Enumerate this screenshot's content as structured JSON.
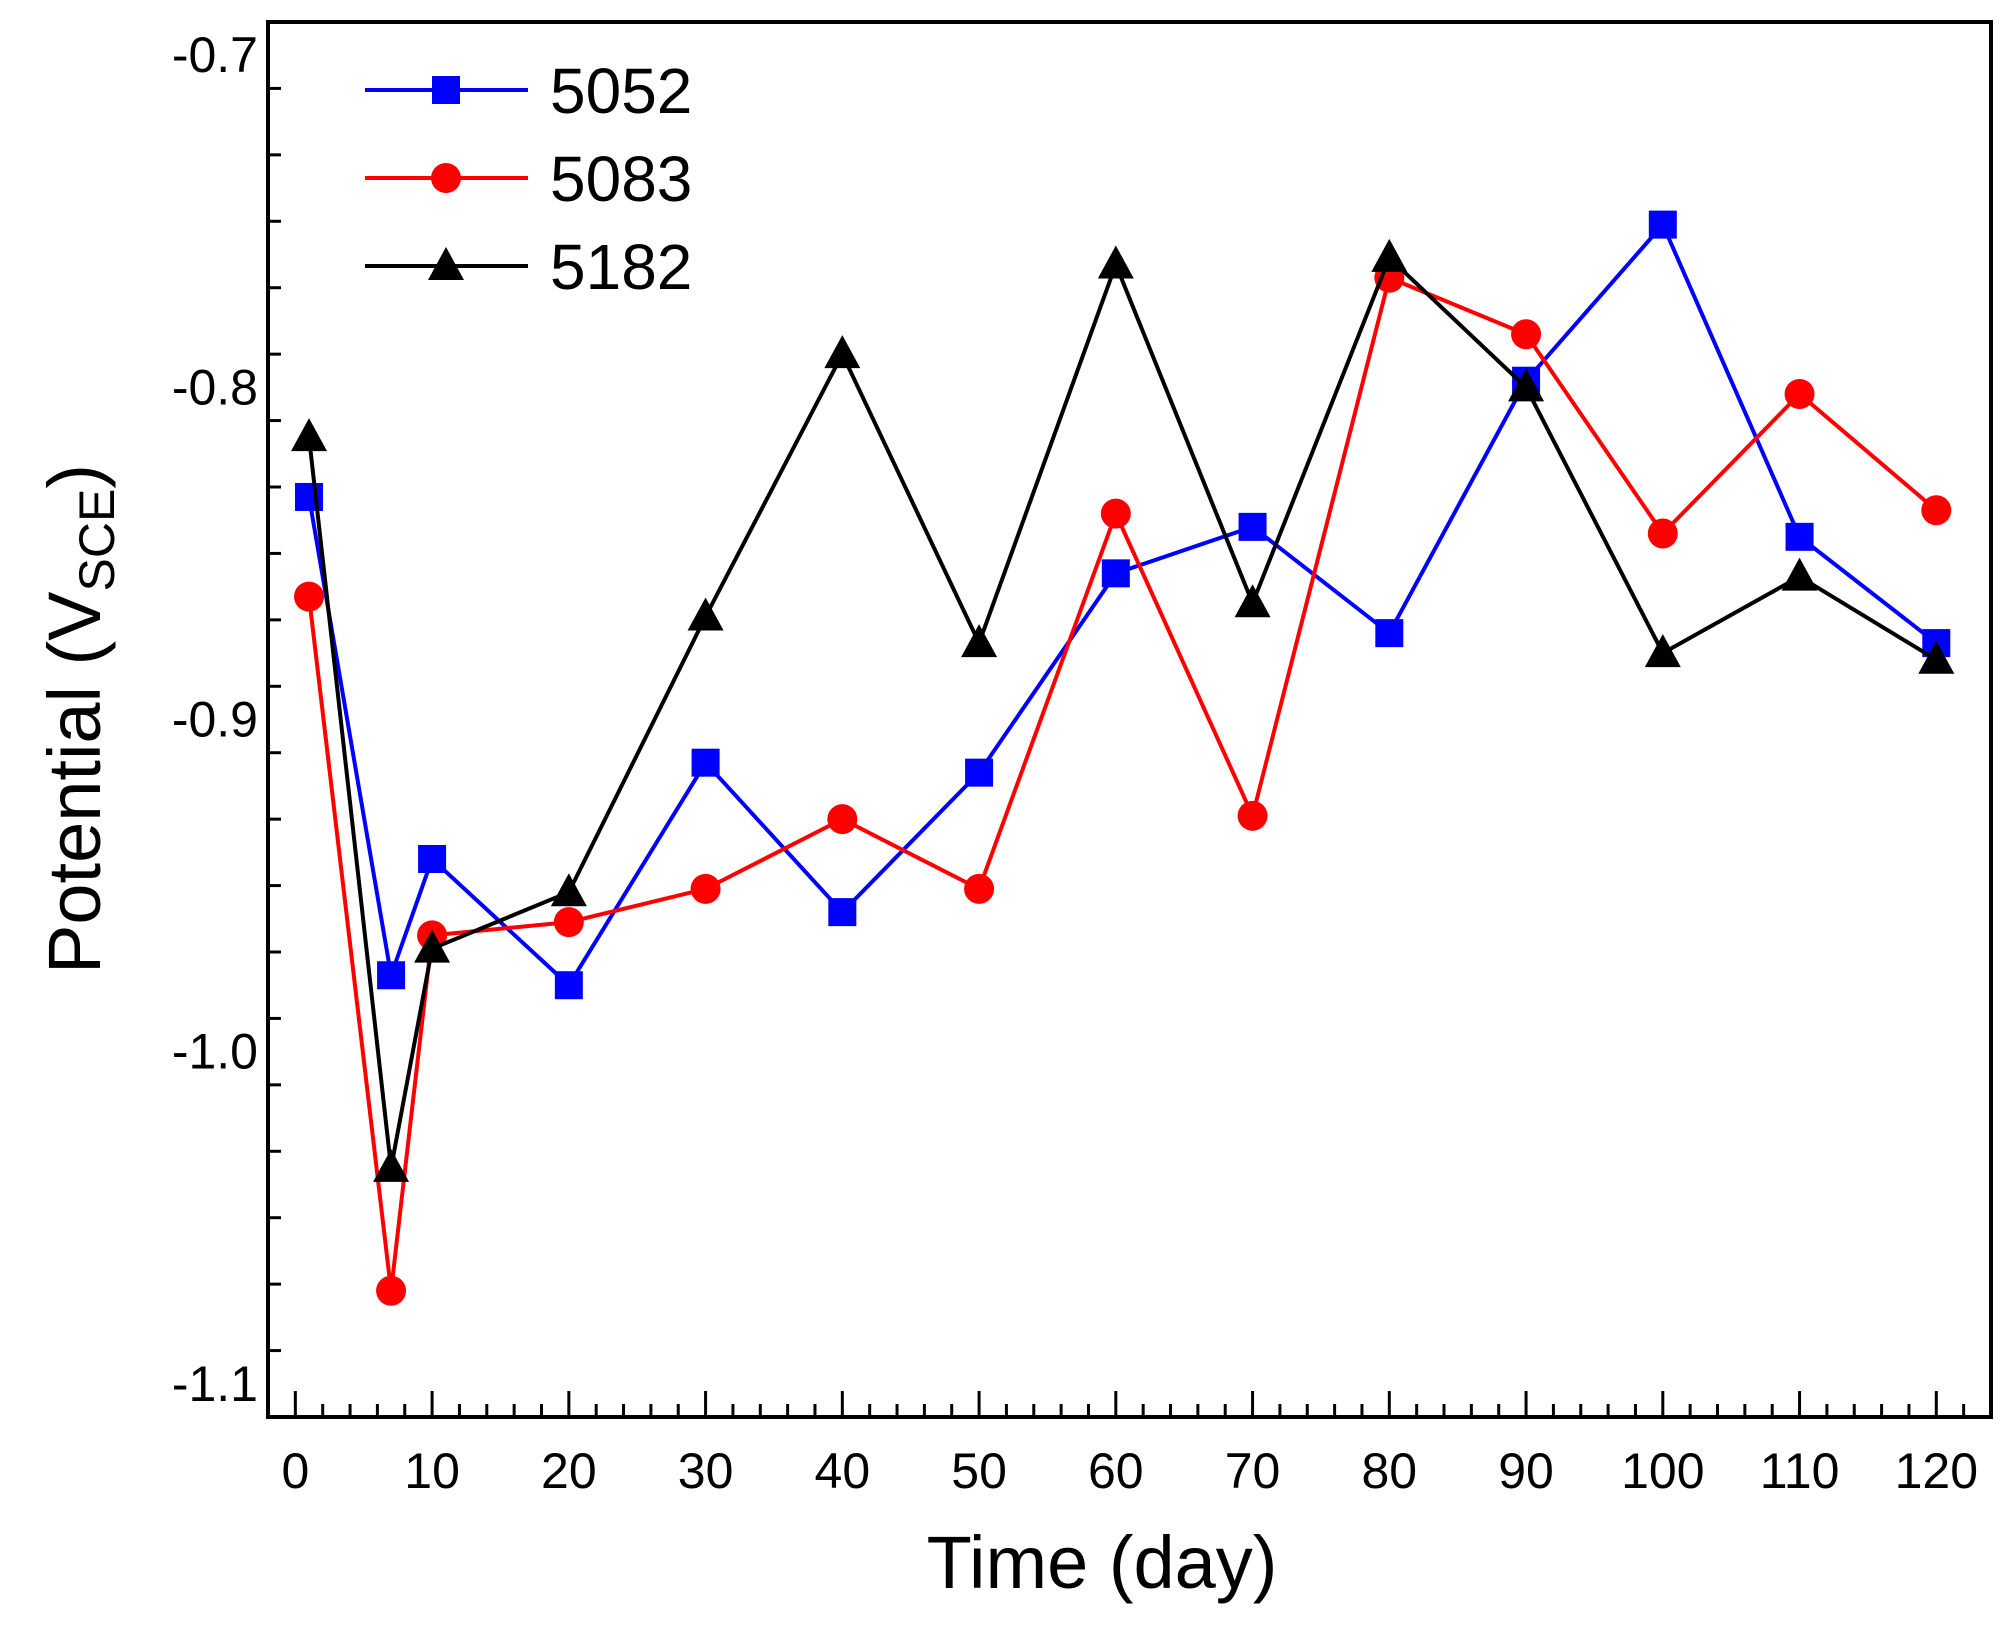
{
  "chart_data": {
    "type": "line",
    "xlabel": "Time (day)",
    "ylabel_main": "Potential (V",
    "ylabel_sub": "SCE",
    "ylabel_close": ")",
    "xlim": [
      -2,
      124
    ],
    "ylim": [
      -1.11,
      -0.69
    ],
    "xticks": [
      0,
      10,
      20,
      30,
      40,
      50,
      60,
      70,
      80,
      90,
      100,
      110,
      120
    ],
    "yticks": [
      -0.7,
      -0.8,
      -0.9,
      -1.0,
      -1.1
    ],
    "ytick_labels": [
      "-0.7",
      "-0.8",
      "-0.9",
      "-1.0",
      "-1.1"
    ],
    "legend_position": "top-left",
    "grid": false,
    "x": [
      1,
      7,
      10,
      20,
      30,
      40,
      50,
      60,
      70,
      80,
      90,
      100,
      110,
      120
    ],
    "series": [
      {
        "name": "5052",
        "color": "#0000ff",
        "marker": "square",
        "values": [
          -0.833,
          -0.977,
          -0.942,
          -0.98,
          -0.913,
          -0.958,
          -0.916,
          -0.856,
          -0.842,
          -0.874,
          -0.798,
          -0.751,
          -0.845,
          -0.877
        ]
      },
      {
        "name": "5083",
        "color": "#ff0000",
        "marker": "circle",
        "values": [
          -0.863,
          -1.072,
          -0.965,
          -0.961,
          -0.951,
          -0.93,
          -0.951,
          -0.838,
          -0.929,
          -0.767,
          -0.784,
          -0.844,
          -0.802,
          -0.837
        ]
      },
      {
        "name": "5182",
        "color": "#000000",
        "marker": "triangle",
        "values": [
          -0.815,
          -1.035,
          -0.969,
          -0.952,
          -0.869,
          -0.79,
          -0.877,
          -0.763,
          -0.865,
          -0.761,
          -0.8,
          -0.88,
          -0.857,
          -0.882
        ]
      }
    ]
  }
}
